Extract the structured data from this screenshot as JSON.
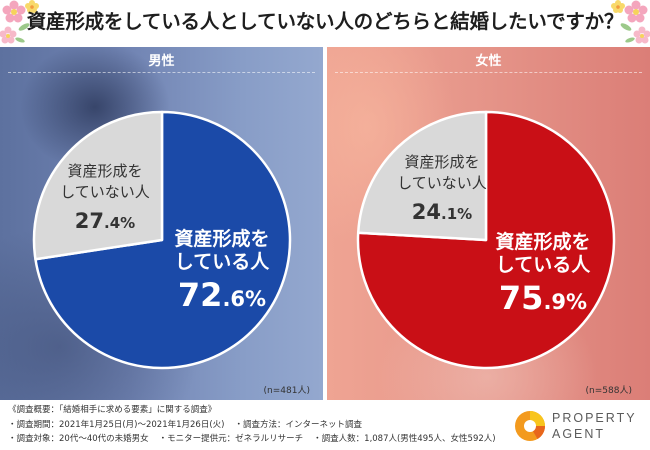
{
  "title": "資産形成をしている人としていない人のどちらと結婚したいですか？",
  "chart_data": [
    {
      "type": "pie",
      "title": "男性",
      "categories": [
        "資産形成をしている人",
        "資産形成をしていない人"
      ],
      "values": [
        72.6,
        27.4
      ],
      "unit": "%",
      "colors": [
        "#1b4aa8",
        "#d9d9d9"
      ],
      "sample_size": "(n=481人)"
    },
    {
      "type": "pie",
      "title": "女性",
      "categories": [
        "資産形成をしている人",
        "資産形成をしていない人"
      ],
      "values": [
        75.9,
        24.1
      ],
      "unit": "%",
      "colors": [
        "#c90f16",
        "#d9d9d9"
      ],
      "sample_size": "(n=588人)"
    }
  ],
  "survey": {
    "heading": "《調査概要：「結婚相手に求める要素」に関する調査》",
    "period": "・調査期間：2021年1月25日(月)〜2021年1月26日(火)",
    "method": "・調査方法：インターネット調査",
    "target": "・調査対象：20代〜40代の未婚男女",
    "provider": "・モニター提供元：ゼネラルリサーチ",
    "respondents": "・調査人数：1,087人(男性495人、女性592人)"
  },
  "logo": {
    "icon": "property-agent-logo-icon",
    "line1": "PROPERTY",
    "line2": "AGENT",
    "colors": [
      "#f39a1e",
      "#f8c51d",
      "#e8661c"
    ]
  },
  "decoration": {
    "icon": "flower-icon"
  }
}
